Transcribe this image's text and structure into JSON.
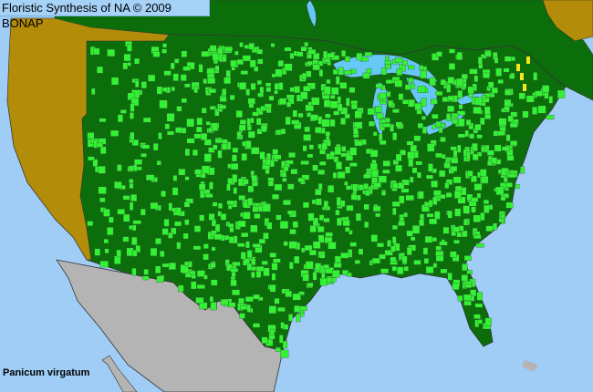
{
  "header": {
    "title": "Floristic Synthesis of NA © 2009 BONAP"
  },
  "species": {
    "name": "Panicum virgatum"
  },
  "colors": {
    "ocean": "#9fcdf5",
    "lakes": "#66c8f5",
    "present_native": "#0b6e0b",
    "present_county": "#33f233",
    "nonnative_or_absent_region": "#b38d0a",
    "rare_county": "#f5e61a",
    "outside_range": "#b4b4b4",
    "boundary": "#404040"
  }
}
